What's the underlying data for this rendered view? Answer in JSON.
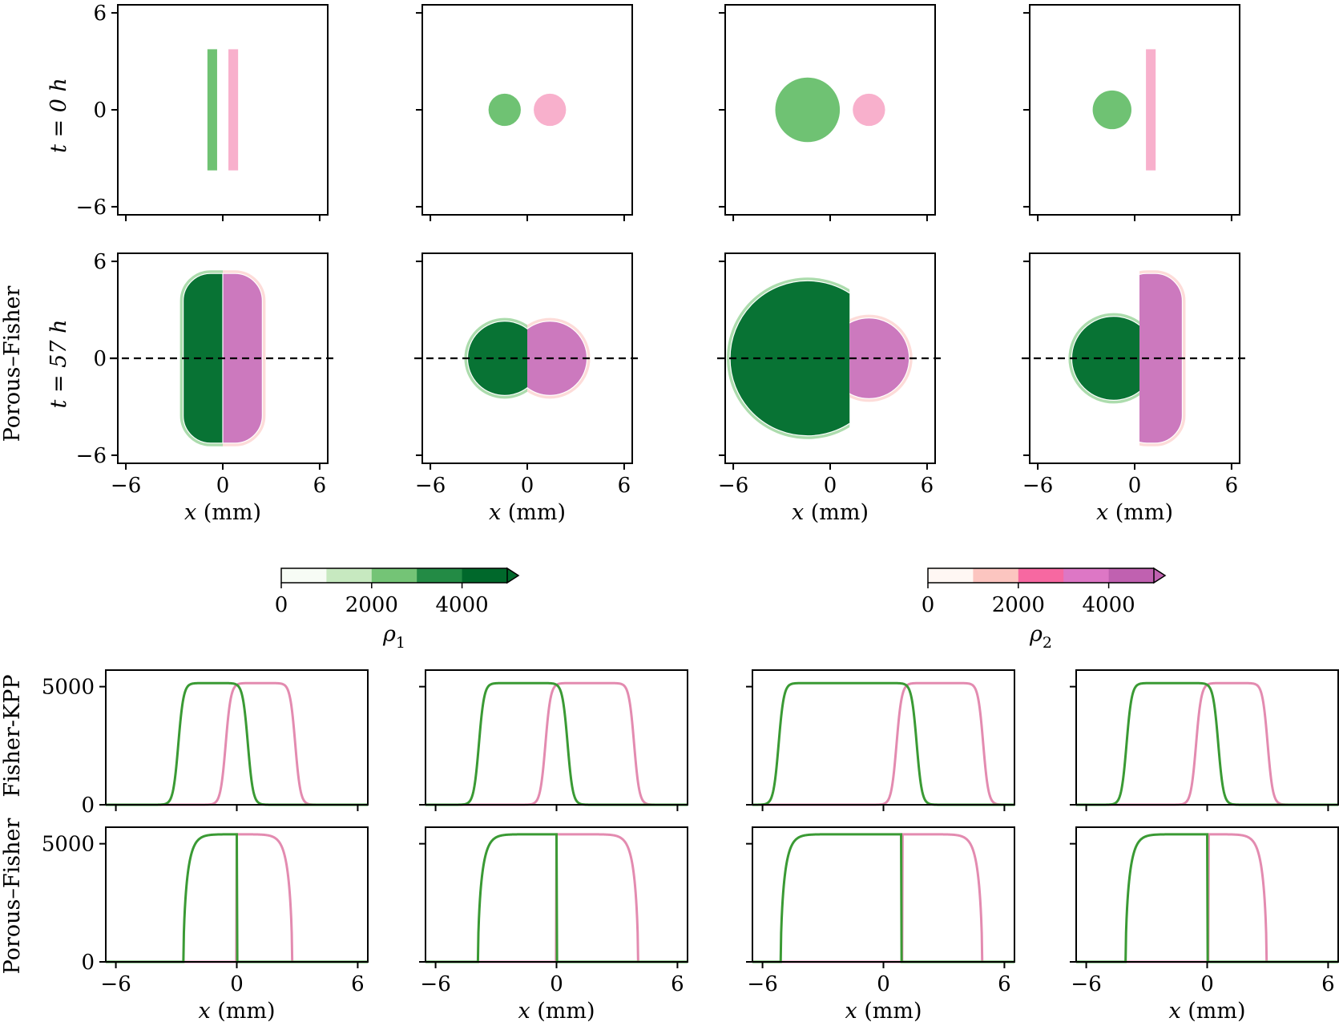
{
  "chart_data": {
    "type": "figure",
    "colors": {
      "rho1_fill": "#6fc273",
      "rho1_dark": "#087334",
      "rho1_line": "#3a9a34",
      "rho2_fill": "#f8b0cc",
      "rho2_dark": "#cc79be",
      "rho2_line": "#e38bb0",
      "rho1_levels": [
        "#f7fcf5",
        "#c7e9c0",
        "#74c476",
        "#238b45",
        "#00682b"
      ],
      "rho2_levels": [
        "#fff7f3",
        "#fcc5c0",
        "#f768a1",
        "#dd77c5",
        "#c061b0"
      ]
    },
    "row_labels": {
      "row1": "t = 0 h",
      "row2_model": "Porous–Fisher",
      "row2_time": "t = 57 h",
      "row3": "Fisher-KPP",
      "row4": "Porous–Fisher"
    },
    "maps": {
      "xlabel": "x (mm)",
      "xlim": [
        -6.5,
        6.5
      ],
      "ylim": [
        -6.5,
        6.5
      ],
      "xticks": [
        "−6",
        "0",
        "6"
      ],
      "yticks": [
        "6",
        "0",
        "−6"
      ],
      "dashed_line_y": 0,
      "initial": [
        {
          "rho1": {
            "shape": "rect",
            "x0": -0.95,
            "x1": -0.35,
            "y0": -3.75,
            "y1": 3.75
          },
          "rho2": {
            "shape": "rect",
            "x0": 0.35,
            "x1": 0.95,
            "y0": -3.75,
            "y1": 3.75
          }
        },
        {
          "rho1": {
            "shape": "circle",
            "cx": -1.4,
            "cy": 0,
            "r": 1.0
          },
          "rho2": {
            "shape": "circle",
            "cx": 1.4,
            "cy": 0,
            "r": 1.0
          }
        },
        {
          "rho1": {
            "shape": "circle",
            "cx": -1.4,
            "cy": 0,
            "r": 2.0
          },
          "rho2": {
            "shape": "circle",
            "cx": 2.4,
            "cy": 0,
            "r": 1.0
          }
        },
        {
          "rho1": {
            "shape": "circle",
            "cx": -1.4,
            "cy": 0,
            "r": 1.2
          },
          "rho2": {
            "shape": "rect",
            "x0": 0.7,
            "x1": 1.3,
            "y0": -3.75,
            "y1": 3.75
          }
        }
      ],
      "final": [
        {
          "rho1": {
            "type": "stadium_left",
            "cx": 0,
            "half_width": 2.45,
            "half_height": 5.25
          },
          "interface_x": 0,
          "rho2": {
            "type": "stadium_right",
            "cx": 0,
            "half_width": 2.45,
            "half_height": 5.25
          }
        },
        {
          "rho1": {
            "type": "circle",
            "cx": -1.4,
            "cy": 0,
            "r": 2.3
          },
          "interface_x": 0,
          "rho2": {
            "type": "circle",
            "cx": 1.4,
            "cy": 0,
            "r": 2.3
          }
        },
        {
          "rho1": {
            "type": "circle",
            "cx": -1.4,
            "cy": 0,
            "r": 4.8
          },
          "interface_x": 1.2,
          "rho2": {
            "type": "circle",
            "cx": 2.4,
            "cy": 0,
            "r": 2.5
          }
        },
        {
          "rho1": {
            "type": "circle",
            "cx": -1.3,
            "cy": 0,
            "r": 2.6
          },
          "interface_x": 0.3,
          "rho2": {
            "type": "stadium",
            "cx": 1.0,
            "half_width": 1.95,
            "half_height": 5.25
          }
        }
      ]
    },
    "colorbars": [
      {
        "label_base": "ρ",
        "label_sub": "1",
        "ticks": [
          "0",
          "2000",
          "4000"
        ],
        "tick_values": [
          0,
          2000,
          4000
        ],
        "range": [
          0,
          5000
        ]
      },
      {
        "label_base": "ρ",
        "label_sub": "2",
        "ticks": [
          "0",
          "2000",
          "4000"
        ],
        "tick_values": [
          0,
          2000,
          4000
        ],
        "range": [
          0,
          5000
        ]
      }
    ],
    "profiles": {
      "xlabel": "x (mm)",
      "xlim": [
        -6.5,
        6.5
      ],
      "ylim": [
        0,
        5700
      ],
      "xticks": [
        "−6",
        "0",
        "6"
      ],
      "yticks": [
        "5000",
        "0"
      ],
      "fisher_kpp": [
        {
          "rho1": {
            "left": -2.9,
            "right": 0.55
          },
          "rho2": {
            "left": -0.55,
            "right": 2.9
          },
          "plateau": 5150
        },
        {
          "rho1": {
            "left": -3.85,
            "right": 0.55
          },
          "rho2": {
            "left": -0.55,
            "right": 3.85
          },
          "plateau": 5150
        },
        {
          "rho1": {
            "left": -5.2,
            "right": 1.65
          },
          "rho2": {
            "left": 0.65,
            "right": 4.95
          },
          "plateau": 5150
        },
        {
          "rho1": {
            "left": -4.0,
            "right": 0.55
          },
          "rho2": {
            "left": -0.55,
            "right": 3.0
          },
          "plateau": 5150
        }
      ],
      "porous_fisher": [
        {
          "rho1": {
            "left": -2.65,
            "right": 0
          },
          "rho2": {
            "left": 0,
            "right": 2.75
          },
          "plateau": 5400
        },
        {
          "rho1": {
            "left": -3.9,
            "right": 0
          },
          "rho2": {
            "left": 0,
            "right": 4.05
          },
          "plateau": 5400
        },
        {
          "rho1": {
            "left": -5.1,
            "right": 0.9
          },
          "rho2": {
            "left": 0.95,
            "right": 4.9
          },
          "plateau": 5400
        },
        {
          "rho1": {
            "left": -4.05,
            "right": 0
          },
          "rho2": {
            "left": 0.05,
            "right": 2.95
          },
          "plateau": 5400
        }
      ]
    }
  }
}
